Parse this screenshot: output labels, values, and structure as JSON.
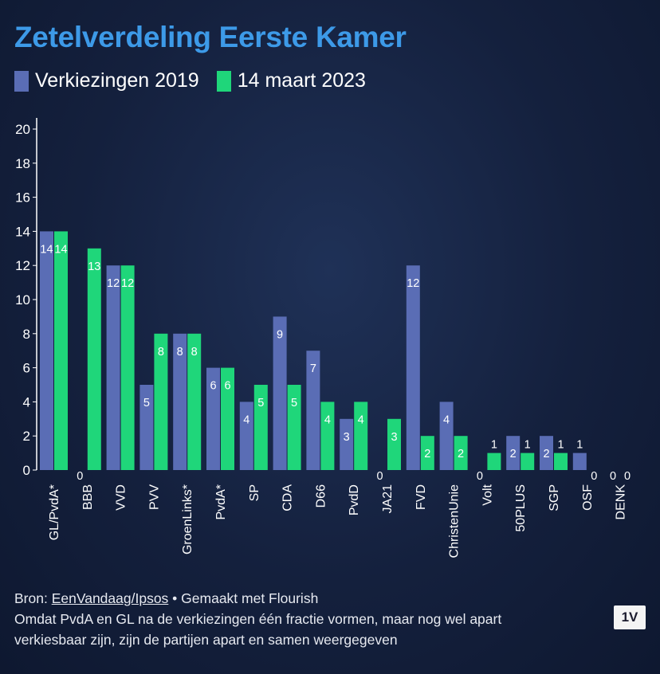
{
  "header": {
    "title": "Zetelverdeling Eerste Kamer"
  },
  "colors": {
    "series_2019": "#5a6db5",
    "series_2023": "#1fd67a",
    "title": "#3d9ae8"
  },
  "footer": {
    "source_prefix": "Bron: ",
    "source_link": "EenVandaag/Ipsos",
    "made_with": " • Gemaakt met Flourish",
    "note_line1": "Omdat PvdA en GL na de verkiezingen één fractie vormen, maar nog wel apart",
    "note_line2": "verkiesbaar zijn, zijn de partijen apart en samen weergegeven"
  },
  "logo": {
    "text": "1V"
  },
  "chart_data": {
    "type": "bar",
    "title": "Zetelverdeling Eerste Kamer",
    "xlabel": "",
    "ylabel": "",
    "ylim": [
      0,
      20
    ],
    "yticks": [
      0,
      2,
      4,
      6,
      8,
      10,
      12,
      14,
      16,
      18,
      20
    ],
    "grid": false,
    "legend_position": "top-left",
    "categories": [
      "GL/PvdA*",
      "BBB",
      "VVD",
      "PVV",
      "GroenLinks*",
      "PvdA*",
      "SP",
      "CDA",
      "D66",
      "PvdD",
      "JA21",
      "FVD",
      "ChristenUnie",
      "Volt",
      "50PLUS",
      "SGP",
      "OSF",
      "DENK"
    ],
    "series": [
      {
        "name": "Verkiezingen 2019",
        "values": [
          14,
          0,
          12,
          5,
          8,
          6,
          4,
          9,
          7,
          3,
          0,
          12,
          4,
          0,
          2,
          2,
          1,
          0
        ]
      },
      {
        "name": "14 maart 2023",
        "values": [
          14,
          13,
          12,
          8,
          8,
          6,
          5,
          5,
          4,
          4,
          3,
          2,
          2,
          1,
          1,
          1,
          0,
          0
        ]
      }
    ]
  }
}
